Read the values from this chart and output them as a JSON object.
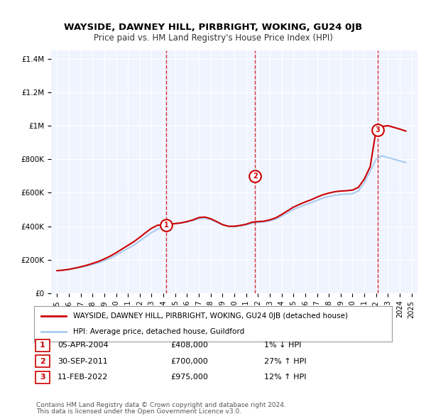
{
  "title": "WAYSIDE, DAWNEY HILL, PIRBRIGHT, WOKING, GU24 0JB",
  "subtitle": "Price paid vs. HM Land Registry's House Price Index (HPI)",
  "legend_line1": "WAYSIDE, DAWNEY HILL, PIRBRIGHT, WOKING, GU24 0JB (detached house)",
  "legend_line2": "HPI: Average price, detached house, Guildford",
  "footer1": "Contains HM Land Registry data © Crown copyright and database right 2024.",
  "footer2": "This data is licensed under the Open Government Licence v3.0.",
  "transactions": [
    {
      "num": 1,
      "date": "05-APR-2004",
      "price": "£408,000",
      "pct": "1% ↓ HPI"
    },
    {
      "num": 2,
      "date": "30-SEP-2011",
      "price": "£700,000",
      "pct": "27% ↑ HPI"
    },
    {
      "num": 3,
      "date": "11-FEB-2022",
      "price": "£975,000",
      "pct": "12% ↑ HPI"
    }
  ],
  "sale_dates": [
    2004.26,
    2011.75,
    2022.12
  ],
  "sale_prices": [
    408000,
    700000,
    975000
  ],
  "hpi_x": [
    1995,
    1995.5,
    1996,
    1996.5,
    1997,
    1997.5,
    1998,
    1998.5,
    1999,
    1999.5,
    2000,
    2000.5,
    2001,
    2001.5,
    2002,
    2002.5,
    2003,
    2003.5,
    2004,
    2004.5,
    2005,
    2005.5,
    2006,
    2006.5,
    2007,
    2007.5,
    2008,
    2008.5,
    2009,
    2009.5,
    2010,
    2010.5,
    2011,
    2011.5,
    2012,
    2012.5,
    2013,
    2013.5,
    2014,
    2014.5,
    2015,
    2015.5,
    2016,
    2016.5,
    2017,
    2017.5,
    2018,
    2018.5,
    2019,
    2019.5,
    2020,
    2020.5,
    2021,
    2021.5,
    2022,
    2022.5,
    2023,
    2023.5,
    2024,
    2024.5
  ],
  "hpi_y": [
    135000,
    138000,
    142000,
    148000,
    155000,
    163000,
    172000,
    182000,
    195000,
    210000,
    228000,
    248000,
    268000,
    288000,
    312000,
    338000,
    362000,
    382000,
    400000,
    408000,
    416000,
    420000,
    426000,
    434000,
    445000,
    448000,
    440000,
    425000,
    408000,
    400000,
    398000,
    402000,
    408000,
    418000,
    422000,
    426000,
    432000,
    442000,
    460000,
    480000,
    500000,
    515000,
    528000,
    540000,
    555000,
    568000,
    578000,
    585000,
    590000,
    592000,
    595000,
    610000,
    660000,
    730000,
    800000,
    820000,
    810000,
    800000,
    790000,
    780000
  ],
  "price_x": [
    1995,
    1995.5,
    1996,
    1996.5,
    1997,
    1997.5,
    1998,
    1998.5,
    1999,
    1999.5,
    2000,
    2000.5,
    2001,
    2001.5,
    2002,
    2002.5,
    2003,
    2003.5,
    2004,
    2004.5,
    2005,
    2005.5,
    2006,
    2006.5,
    2007,
    2007.5,
    2008,
    2008.5,
    2009,
    2009.5,
    2010,
    2010.5,
    2011,
    2011.5,
    2012,
    2012.5,
    2013,
    2013.5,
    2014,
    2014.5,
    2015,
    2015.5,
    2016,
    2016.5,
    2017,
    2017.5,
    2018,
    2018.5,
    2019,
    2019.5,
    2020,
    2020.5,
    2021,
    2021.5,
    2022,
    2022.5,
    2023,
    2023.5,
    2024,
    2024.5
  ],
  "price_y": [
    135000,
    138000,
    143000,
    150000,
    158000,
    167000,
    178000,
    190000,
    205000,
    222000,
    242000,
    264000,
    286000,
    308000,
    334000,
    362000,
    388000,
    406000,
    408000,
    412000,
    416000,
    420000,
    428000,
    438000,
    452000,
    455000,
    445000,
    428000,
    410000,
    400000,
    400000,
    405000,
    412000,
    424000,
    428000,
    430000,
    438000,
    450000,
    470000,
    492000,
    514000,
    530000,
    545000,
    558000,
    574000,
    588000,
    598000,
    606000,
    610000,
    612000,
    616000,
    632000,
    682000,
    756000,
    975000,
    995000,
    1000000,
    990000,
    980000,
    968000
  ],
  "vline_dates": [
    2004.26,
    2011.75,
    2022.12
  ],
  "vline_color": "#cc0000",
  "hpi_color": "#aaccee",
  "price_color": "#cc0000",
  "bg_plot": "#f0f4ff",
  "ylim": [
    0,
    1450000
  ],
  "xlim": [
    1994.5,
    2025.5
  ]
}
